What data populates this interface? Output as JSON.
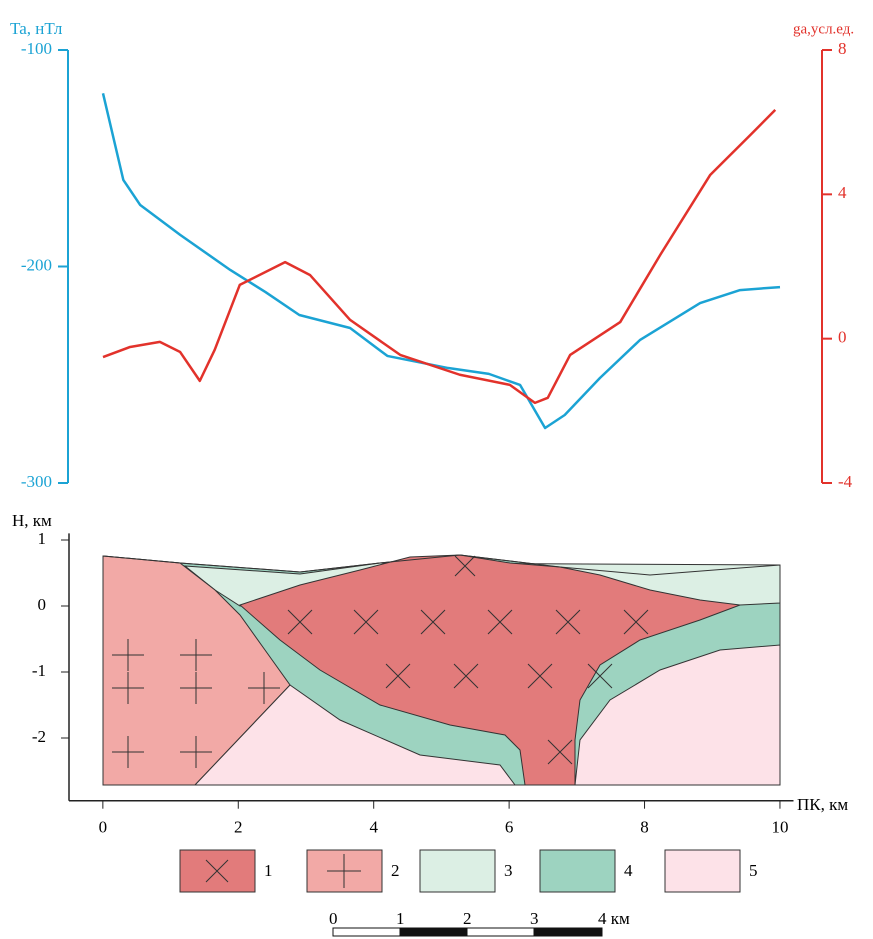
{
  "chart_data": [
    {
      "type": "line",
      "y_label": "Ta, нТл",
      "y2_label": "ga,усл.ед.",
      "xlim": [
        0,
        10
      ],
      "ylim": [
        -300,
        -100
      ],
      "yticks": [
        -100,
        -200,
        -300
      ],
      "y2lim": [
        -4,
        8
      ],
      "y2ticks": [
        8,
        4,
        0,
        -4
      ],
      "series": [
        {
          "color": "#1ba3d4",
          "x": [
            0,
            0.3,
            0.55,
            1.14,
            1.88,
            2.4,
            2.9,
            3.65,
            4.2,
            5.1,
            5.7,
            6.16,
            6.53,
            6.82,
            7.34,
            7.93,
            8.82,
            9.41,
            10
          ],
          "values": [
            -120,
            -160,
            -171.6,
            -185.4,
            -201.6,
            -211.8,
            -222.4,
            -228.4,
            -241.3,
            -246.9,
            -249.6,
            -254.7,
            -274.6,
            -268.6,
            -251.5,
            -234,
            -216.9,
            -210.9,
            -209.5
          ]
        },
        {
          "color": "#e2322b",
          "axis": "y2",
          "x": [
            0,
            0.4,
            0.84,
            1.14,
            1.43,
            1.65,
            2.02,
            2.69,
            3.06,
            3.65,
            4.39,
            5.27,
            6.01,
            6.38,
            6.57,
            6.9,
            7.64,
            8.23,
            8.97,
            9.56,
            9.93
          ],
          "values": [
            -0.51,
            -0.23,
            -0.09,
            -0.37,
            -1.17,
            -0.31,
            1.49,
            2.12,
            1.76,
            0.52,
            -0.45,
            -1.0,
            -1.28,
            -1.78,
            -1.64,
            -0.45,
            0.46,
            2.32,
            4.54,
            5.64,
            6.34
          ]
        }
      ]
    },
    {
      "type": "section",
      "y_label": "H, км",
      "x_label": "ПК, км",
      "xlim": [
        -0.5,
        10.2
      ],
      "ylim": [
        -2.95,
        1.1
      ],
      "xticks": [
        0,
        2,
        4,
        6,
        8,
        10
      ],
      "yticks": [
        1,
        0,
        -1,
        -2
      ],
      "legend": [
        "1",
        "2",
        "3",
        "4",
        "5"
      ],
      "scale_labels": [
        "0",
        "1",
        "2",
        "3",
        "4 км"
      ]
    }
  ]
}
